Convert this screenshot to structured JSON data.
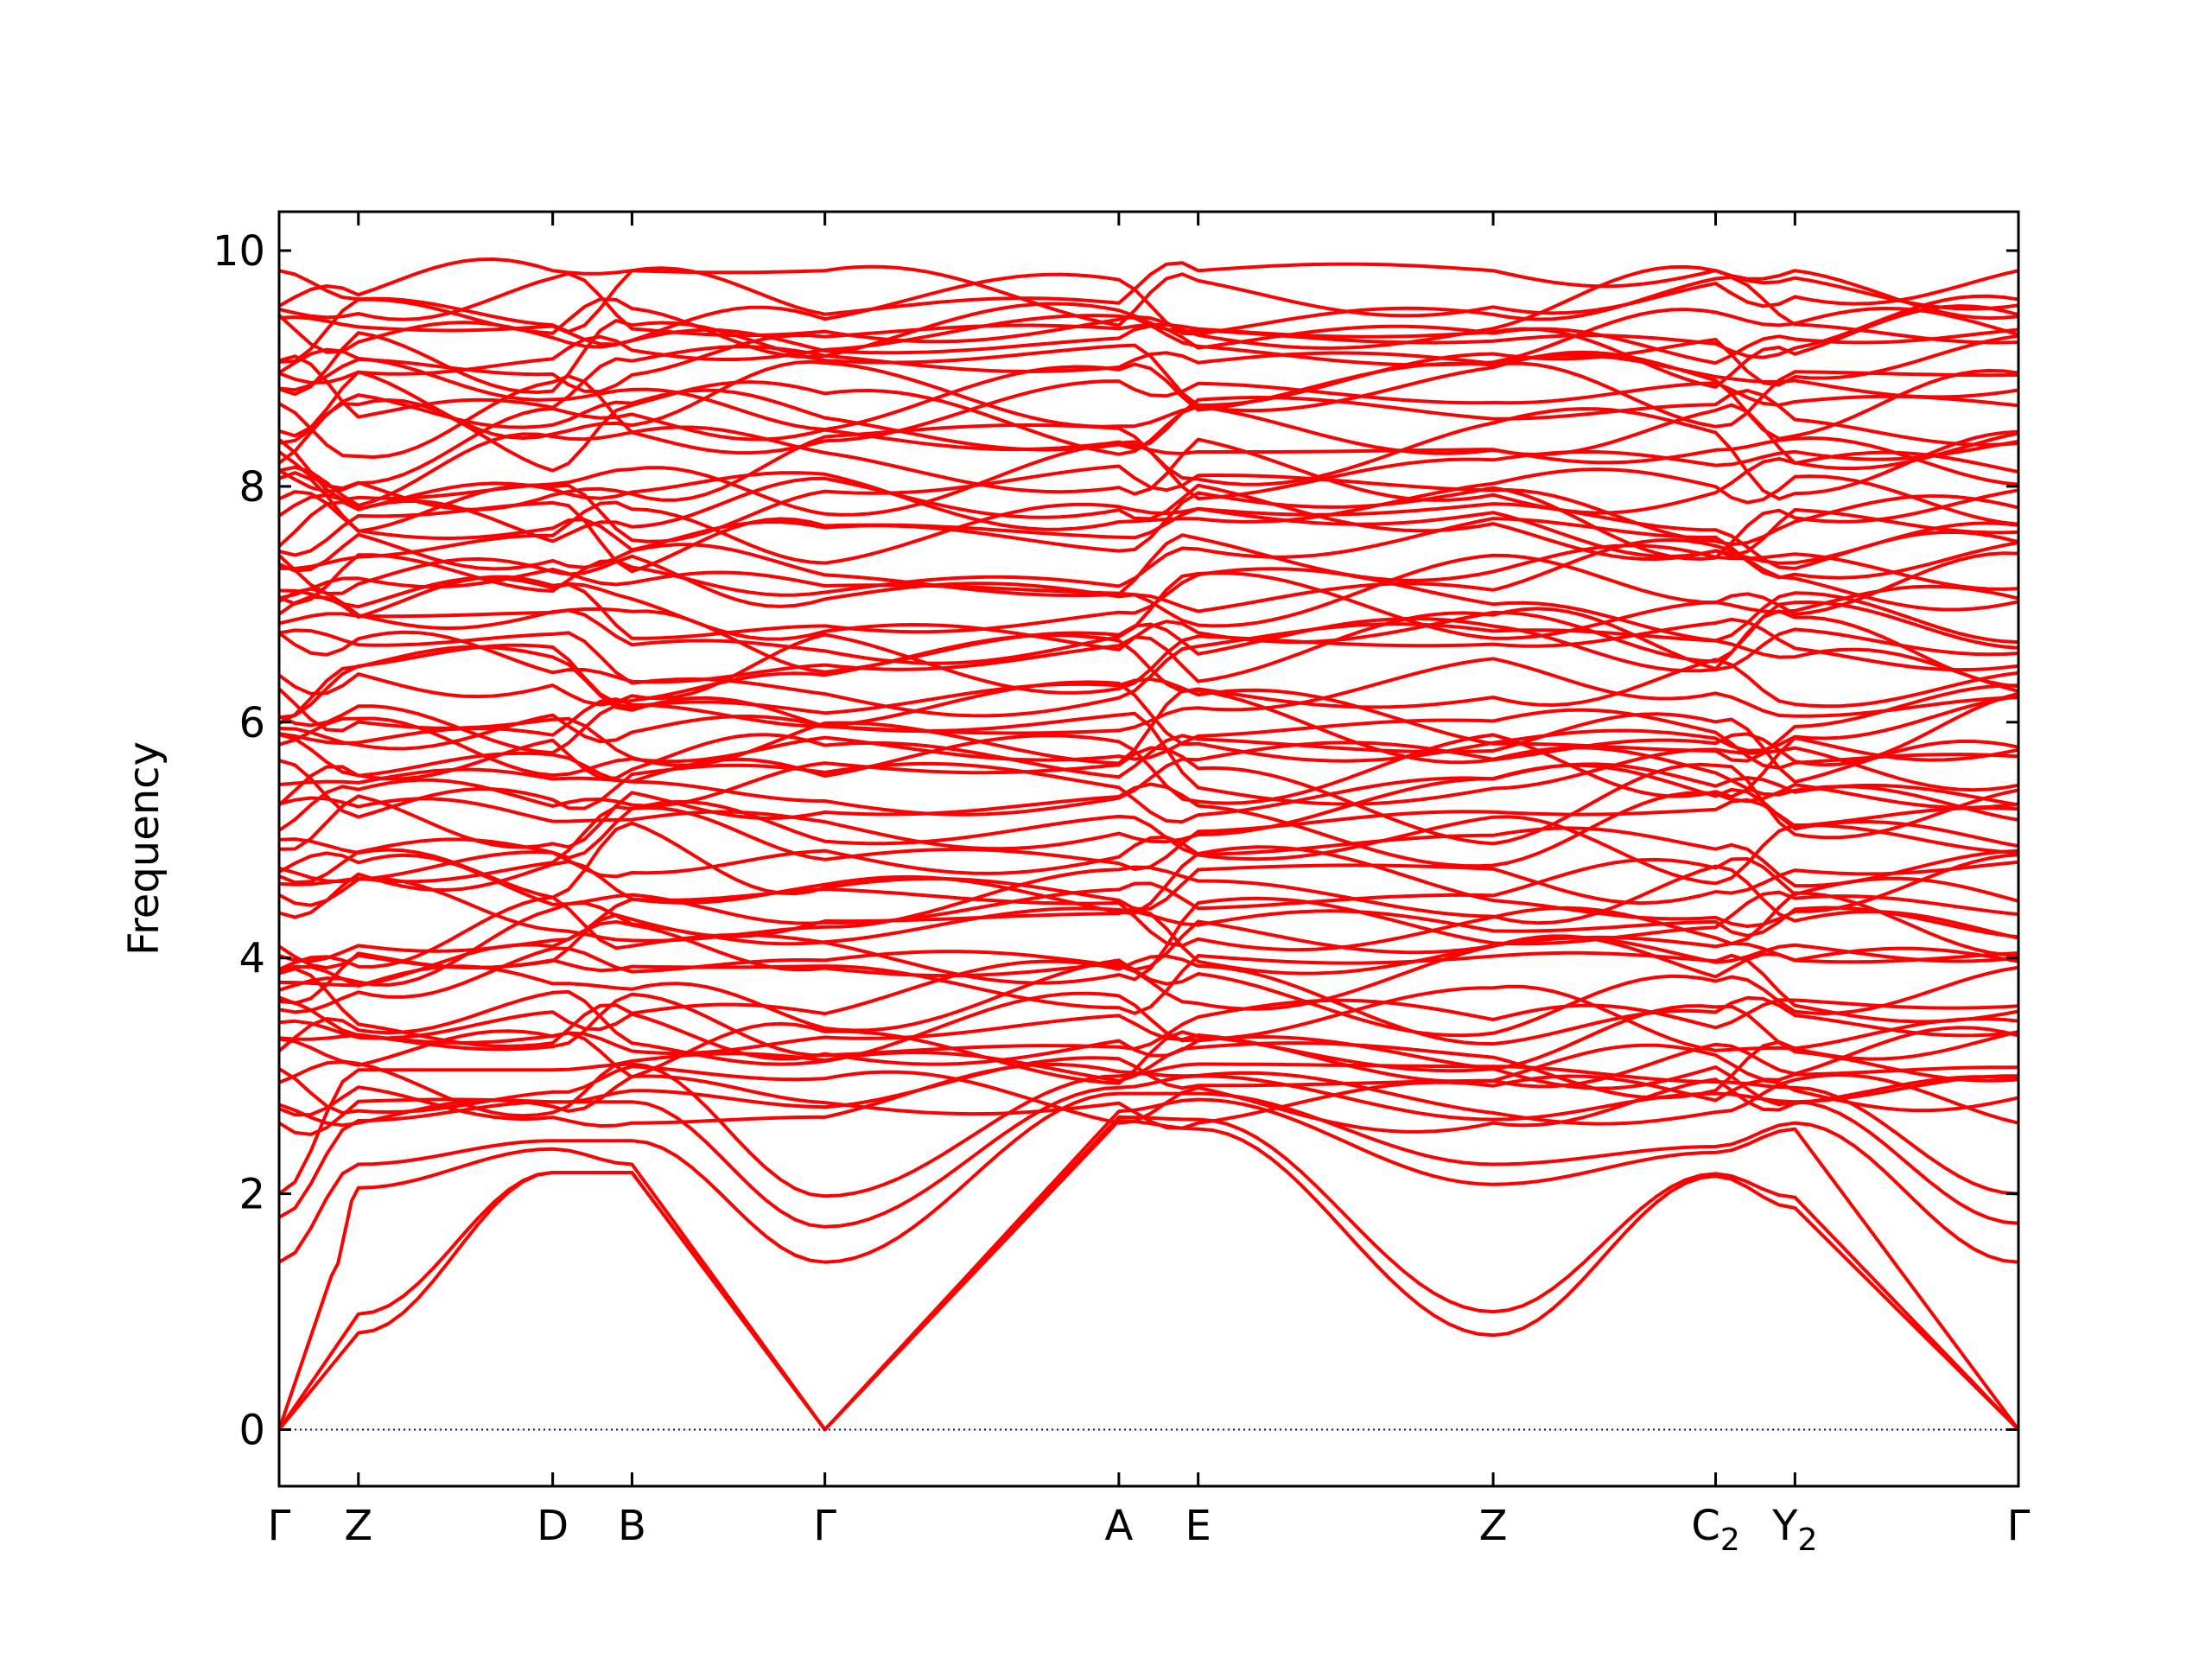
{
  "chart_data": {
    "type": "line",
    "title": "",
    "xlabel": "",
    "ylabel": "Frequency",
    "ylim": [
      -0.48,
      10.33
    ],
    "yticks": [
      0,
      2,
      4,
      6,
      8,
      10
    ],
    "xticks": [
      {
        "label": "Γ",
        "x": 0.0
      },
      {
        "label": "Z",
        "x": 0.0456
      },
      {
        "label": "D",
        "x": 0.1573
      },
      {
        "label": "B",
        "x": 0.2029
      },
      {
        "label": "Γ",
        "x": 0.3138
      },
      {
        "label": "A",
        "x": 0.4828
      },
      {
        "label": "E",
        "x": 0.5284
      },
      {
        "label": "Z",
        "x": 0.698
      },
      {
        "label": "C",
        "sub": "2",
        "x": 0.8259
      },
      {
        "label": "Y",
        "sub": "2",
        "x": 0.8715
      },
      {
        "label": "Γ",
        "x": 1.0
      }
    ],
    "reference_line": {
      "y": 0,
      "color": "#0000ff",
      "style": "dotted"
    },
    "band_color": "#ff0000",
    "grid": false,
    "legend": "none",
    "acoustic_bands": [
      [
        [
          0.0,
          0.0
        ],
        [
          0.0456,
          0.82
        ],
        [
          0.1573,
          2.18
        ],
        [
          0.2029,
          2.18
        ],
        [
          0.3138,
          0.0
        ],
        [
          0.4828,
          2.62
        ],
        [
          0.5284,
          2.55
        ],
        [
          0.698,
          0.8
        ],
        [
          0.8259,
          2.15
        ],
        [
          0.8715,
          1.88
        ],
        [
          1.0,
          0.0
        ]
      ],
      [
        [
          0.0,
          0.0
        ],
        [
          0.0456,
          0.98
        ],
        [
          0.1573,
          2.18
        ],
        [
          0.2029,
          2.18
        ],
        [
          0.3138,
          0.0
        ],
        [
          0.4828,
          2.65
        ],
        [
          0.5284,
          2.63
        ],
        [
          0.698,
          1.0
        ],
        [
          0.8259,
          2.17
        ],
        [
          0.8715,
          1.97
        ],
        [
          1.0,
          0.0
        ]
      ],
      [
        [
          0.0,
          0.0
        ],
        [
          0.03,
          1.3
        ],
        [
          0.0456,
          2.05
        ],
        [
          0.1573,
          2.38
        ],
        [
          0.2029,
          2.25
        ],
        [
          0.3138,
          0.0
        ],
        [
          0.4828,
          2.7
        ],
        [
          0.5284,
          2.8
        ],
        [
          0.698,
          2.08
        ],
        [
          0.8259,
          2.35
        ],
        [
          0.8715,
          2.55
        ],
        [
          1.0,
          0.0
        ]
      ]
    ],
    "low_optical_bands": [
      [
        [
          0.0,
          1.42
        ],
        [
          0.0456,
          2.25
        ],
        [
          0.1573,
          2.45
        ],
        [
          0.2029,
          2.45
        ],
        [
          0.3138,
          1.42
        ],
        [
          0.4828,
          2.85
        ],
        [
          0.5284,
          2.85
        ],
        [
          0.698,
          2.25
        ],
        [
          0.8259,
          2.4
        ],
        [
          0.8715,
          2.6
        ],
        [
          1.0,
          1.42
        ]
      ],
      [
        [
          0.0,
          1.8
        ],
        [
          0.0456,
          2.62
        ],
        [
          0.1573,
          2.78
        ],
        [
          0.2029,
          2.78
        ],
        [
          0.3138,
          1.72
        ],
        [
          0.4828,
          2.9
        ],
        [
          0.5284,
          3.0
        ],
        [
          0.698,
          2.63
        ],
        [
          0.8259,
          2.85
        ],
        [
          0.8715,
          2.78
        ],
        [
          1.0,
          1.75
        ]
      ],
      [
        [
          0.0,
          2.0
        ],
        [
          0.0456,
          3.05
        ],
        [
          0.1573,
          3.05
        ],
        [
          0.2029,
          3.1
        ],
        [
          0.3138,
          1.98
        ],
        [
          0.4828,
          3.0
        ],
        [
          0.5284,
          3.1
        ],
        [
          0.698,
          3.08
        ],
        [
          0.8259,
          2.95
        ],
        [
          0.8715,
          2.9
        ],
        [
          1.0,
          2.0
        ]
      ]
    ],
    "band_count": 82,
    "band_range": [
      0,
      9.83
    ]
  }
}
